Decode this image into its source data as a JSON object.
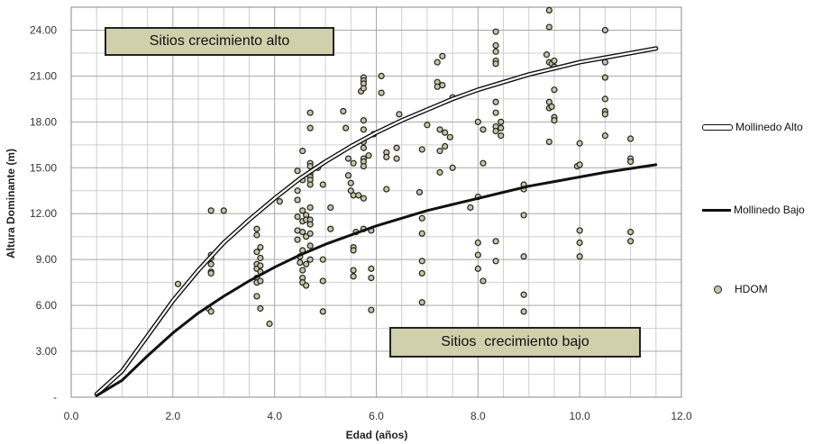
{
  "chart_data": {
    "type": "scatter",
    "xlabel": "Edad (años)",
    "ylabel": "Altura Dominante (m)",
    "xlim": [
      0,
      12
    ],
    "ylim": [
      0,
      25.5
    ],
    "grid": true,
    "x_ticks": [
      {
        "value": 0,
        "label": "0.0"
      },
      {
        "value": 2,
        "label": "2.0"
      },
      {
        "value": 4,
        "label": "4.0"
      },
      {
        "value": 6,
        "label": "6.0"
      },
      {
        "value": 8,
        "label": "8.0"
      },
      {
        "value": 10,
        "label": "10.0"
      },
      {
        "value": 12,
        "label": "12.0"
      }
    ],
    "y_ticks": [
      {
        "value": 0,
        "label": "-"
      },
      {
        "value": 3,
        "label": "3.00"
      },
      {
        "value": 6,
        "label": "6.00"
      },
      {
        "value": 9,
        "label": "9.00"
      },
      {
        "value": 12,
        "label": "12.00"
      },
      {
        "value": 15,
        "label": "15.00"
      },
      {
        "value": 18,
        "label": "18.00"
      },
      {
        "value": 21,
        "label": "21.00"
      },
      {
        "value": 24,
        "label": "24.00"
      }
    ],
    "series": [
      {
        "name": "Mollinedo Alto",
        "style": "double-line",
        "x": [
          0.5,
          1,
          1.5,
          2,
          2.5,
          3,
          3.5,
          4,
          4.5,
          5,
          5.5,
          6,
          6.5,
          7,
          7.5,
          8,
          8.5,
          9,
          9.5,
          10,
          10.5,
          11,
          11.5
        ],
        "y": [
          0.2,
          1.7,
          4.0,
          6.3,
          8.3,
          10.1,
          11.6,
          13.0,
          14.3,
          15.4,
          16.4,
          17.3,
          18.1,
          18.8,
          19.5,
          20.1,
          20.6,
          21.1,
          21.5,
          21.9,
          22.2,
          22.5,
          22.8
        ]
      },
      {
        "name": "Mollinedo Bajo",
        "style": "line",
        "x": [
          0.5,
          1,
          1.5,
          2,
          2.5,
          3,
          3.5,
          4,
          4.5,
          5,
          5.5,
          6,
          6.5,
          7,
          7.5,
          8,
          8.5,
          9,
          9.5,
          10,
          10.5,
          11,
          11.5
        ],
        "y": [
          0.1,
          1.1,
          2.7,
          4.2,
          5.5,
          6.6,
          7.6,
          8.5,
          9.3,
          10.0,
          10.6,
          11.2,
          11.7,
          12.2,
          12.6,
          13.0,
          13.4,
          13.8,
          14.1,
          14.4,
          14.7,
          14.95,
          15.2
        ]
      },
      {
        "name": "HDOM",
        "style": "points",
        "points": [
          [
            2.1,
            7.4
          ],
          [
            2.7,
            5.8
          ],
          [
            2.75,
            5.6
          ],
          [
            2.75,
            12.2
          ],
          [
            2.75,
            9.3
          ],
          [
            2.75,
            9.1
          ],
          [
            2.75,
            8.7
          ],
          [
            2.75,
            8.2
          ],
          [
            2.75,
            8.1
          ],
          [
            3.0,
            12.2
          ],
          [
            3.65,
            11.0
          ],
          [
            3.65,
            10.6
          ],
          [
            3.65,
            9.5
          ],
          [
            3.65,
            8.7
          ],
          [
            3.65,
            8.4
          ],
          [
            3.65,
            7.8
          ],
          [
            3.65,
            7.5
          ],
          [
            3.65,
            6.6
          ],
          [
            3.72,
            9.8
          ],
          [
            3.72,
            9.1
          ],
          [
            3.72,
            8.6
          ],
          [
            3.72,
            8.2
          ],
          [
            3.72,
            7.6
          ],
          [
            3.72,
            5.8
          ],
          [
            3.9,
            4.8
          ],
          [
            4.1,
            12.8
          ],
          [
            4.45,
            14.8
          ],
          [
            4.45,
            13.5
          ],
          [
            4.45,
            12.9
          ],
          [
            4.45,
            11.8
          ],
          [
            4.45,
            10.9
          ],
          [
            4.45,
            10.3
          ],
          [
            4.5,
            9.2
          ],
          [
            4.5,
            8.8
          ],
          [
            4.55,
            16.1
          ],
          [
            4.55,
            14.2
          ],
          [
            4.55,
            12.2
          ],
          [
            4.55,
            11.5
          ],
          [
            4.55,
            10.8
          ],
          [
            4.55,
            9.6
          ],
          [
            4.55,
            8.3
          ],
          [
            4.55,
            7.8
          ],
          [
            4.55,
            7.5
          ],
          [
            4.62,
            11.9
          ],
          [
            4.62,
            11.6
          ],
          [
            4.62,
            10.5
          ],
          [
            4.62,
            8.7
          ],
          [
            4.62,
            7.3
          ],
          [
            4.7,
            18.6
          ],
          [
            4.7,
            17.6
          ],
          [
            4.7,
            15.3
          ],
          [
            4.7,
            15.1
          ],
          [
            4.7,
            14.6
          ],
          [
            4.7,
            14.4
          ],
          [
            4.7,
            14.2
          ],
          [
            4.7,
            13.9
          ],
          [
            4.7,
            12.4
          ],
          [
            4.7,
            11.6
          ],
          [
            4.7,
            11.3
          ],
          [
            4.7,
            10.7
          ],
          [
            4.7,
            9.9
          ],
          [
            4.7,
            9.0
          ],
          [
            4.85,
            15.0
          ],
          [
            4.95,
            13.9
          ],
          [
            4.95,
            9.0
          ],
          [
            4.95,
            7.6
          ],
          [
            4.95,
            5.6
          ],
          [
            5.1,
            12.4
          ],
          [
            5.1,
            11.0
          ],
          [
            5.35,
            18.7
          ],
          [
            5.4,
            17.6
          ],
          [
            5.45,
            15.6
          ],
          [
            5.45,
            14.5
          ],
          [
            5.5,
            14.0
          ],
          [
            5.5,
            13.5
          ],
          [
            5.55,
            15.3
          ],
          [
            5.55,
            13.2
          ],
          [
            5.55,
            9.8
          ],
          [
            5.55,
            9.6
          ],
          [
            5.55,
            8.3
          ],
          [
            5.55,
            7.9
          ],
          [
            5.6,
            10.8
          ],
          [
            5.65,
            13.2
          ],
          [
            5.7,
            20.0
          ],
          [
            5.75,
            20.9
          ],
          [
            5.75,
            20.7
          ],
          [
            5.75,
            20.5
          ],
          [
            5.75,
            20.2
          ],
          [
            5.75,
            18.1
          ],
          [
            5.75,
            17.5
          ],
          [
            5.75,
            16.7
          ],
          [
            5.75,
            16.3
          ],
          [
            5.75,
            15.6
          ],
          [
            5.75,
            15.4
          ],
          [
            5.75,
            15.1
          ],
          [
            5.75,
            13.0
          ],
          [
            5.75,
            11.0
          ],
          [
            5.85,
            15.8
          ],
          [
            5.9,
            10.9
          ],
          [
            5.9,
            8.4
          ],
          [
            5.9,
            7.8
          ],
          [
            5.9,
            5.7
          ],
          [
            5.95,
            17.2
          ],
          [
            6.1,
            21.0
          ],
          [
            6.1,
            19.9
          ],
          [
            6.2,
            16.0
          ],
          [
            6.2,
            15.7
          ],
          [
            6.2,
            13.6
          ],
          [
            6.4,
            16.3
          ],
          [
            6.4,
            15.6
          ],
          [
            6.45,
            18.5
          ],
          [
            6.85,
            13.4
          ],
          [
            6.9,
            16.2
          ],
          [
            6.9,
            11.7
          ],
          [
            6.9,
            10.7
          ],
          [
            6.9,
            8.9
          ],
          [
            6.9,
            8.1
          ],
          [
            6.9,
            6.2
          ],
          [
            7.0,
            17.8
          ],
          [
            7.2,
            21.9
          ],
          [
            7.2,
            20.6
          ],
          [
            7.2,
            20.3
          ],
          [
            7.25,
            17.5
          ],
          [
            7.25,
            16.1
          ],
          [
            7.25,
            14.7
          ],
          [
            7.3,
            22.3
          ],
          [
            7.3,
            20.4
          ],
          [
            7.35,
            17.3
          ],
          [
            7.35,
            16.4
          ],
          [
            7.45,
            17.0
          ],
          [
            7.5,
            19.6
          ],
          [
            7.5,
            15.0
          ],
          [
            7.85,
            12.4
          ],
          [
            8.0,
            18.0
          ],
          [
            8.0,
            13.1
          ],
          [
            8.0,
            10.1
          ],
          [
            8.0,
            9.3
          ],
          [
            8.0,
            8.4
          ],
          [
            8.1,
            17.5
          ],
          [
            8.1,
            15.3
          ],
          [
            8.1,
            7.6
          ],
          [
            8.35,
            23.9
          ],
          [
            8.35,
            23.0
          ],
          [
            8.35,
            22.6
          ],
          [
            8.35,
            22.0
          ],
          [
            8.35,
            21.8
          ],
          [
            8.35,
            19.3
          ],
          [
            8.35,
            18.6
          ],
          [
            8.35,
            17.7
          ],
          [
            8.35,
            17.4
          ],
          [
            8.35,
            10.2
          ],
          [
            8.35,
            8.9
          ],
          [
            8.45,
            18.0
          ],
          [
            8.45,
            17.6
          ],
          [
            8.45,
            17.1
          ],
          [
            8.9,
            13.9
          ],
          [
            8.9,
            13.6
          ],
          [
            8.9,
            11.9
          ],
          [
            8.9,
            9.2
          ],
          [
            8.9,
            6.7
          ],
          [
            8.9,
            5.6
          ],
          [
            9.35,
            22.4
          ],
          [
            9.4,
            25.3
          ],
          [
            9.4,
            24.2
          ],
          [
            9.4,
            21.9
          ],
          [
            9.4,
            19.3
          ],
          [
            9.4,
            18.9
          ],
          [
            9.4,
            16.7
          ],
          [
            9.45,
            21.8
          ],
          [
            9.45,
            19.0
          ],
          [
            9.5,
            22.0
          ],
          [
            9.5,
            21.6
          ],
          [
            9.5,
            20.1
          ],
          [
            9.5,
            18.3
          ],
          [
            9.5,
            18.1
          ],
          [
            9.95,
            15.1
          ],
          [
            10.0,
            16.6
          ],
          [
            10.0,
            15.2
          ],
          [
            10.0,
            10.9
          ],
          [
            10.0,
            10.1
          ],
          [
            10.0,
            9.2
          ],
          [
            10.5,
            24.0
          ],
          [
            10.5,
            21.9
          ],
          [
            10.5,
            20.9
          ],
          [
            10.5,
            19.5
          ],
          [
            10.5,
            18.7
          ],
          [
            10.5,
            18.5
          ],
          [
            10.5,
            17.1
          ],
          [
            11.0,
            16.9
          ],
          [
            11.0,
            15.6
          ],
          [
            11.0,
            15.4
          ],
          [
            11.0,
            10.8
          ],
          [
            11.0,
            10.2
          ]
        ]
      }
    ],
    "annotations": [
      "Sitios crecimiento alto",
      "Sitios  crecimiento bajo"
    ],
    "legend": [
      "Mollinedo Alto",
      "Mollinedo Bajo",
      "HDOM"
    ],
    "legend_position": "right"
  }
}
